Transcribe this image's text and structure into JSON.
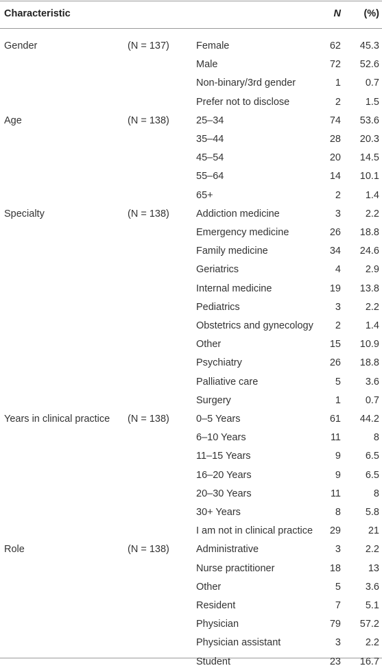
{
  "header": {
    "characteristic": "Characteristic",
    "n": "N",
    "pct": "(%)"
  },
  "groups": [
    {
      "name": "Gender",
      "n_label": "(N = 137)",
      "items": [
        {
          "label": "Female",
          "n": 62,
          "pct": 45.3
        },
        {
          "label": "Male",
          "n": 72,
          "pct": 52.6
        },
        {
          "label": "Non-binary/3rd gender",
          "n": 1,
          "pct": 0.7
        },
        {
          "label": "Prefer not to disclose",
          "n": 2,
          "pct": 1.5
        }
      ]
    },
    {
      "name": "Age",
      "n_label": "(N = 138)",
      "items": [
        {
          "label": "25–34",
          "n": 74,
          "pct": 53.6
        },
        {
          "label": "35–44",
          "n": 28,
          "pct": 20.3
        },
        {
          "label": "45–54",
          "n": 20,
          "pct": 14.5
        },
        {
          "label": "55–64",
          "n": 14,
          "pct": 10.1
        },
        {
          "label": "65+",
          "n": 2,
          "pct": 1.4
        }
      ]
    },
    {
      "name": "Specialty",
      "n_label": "(N = 138)",
      "items": [
        {
          "label": "Addiction medicine",
          "n": 3,
          "pct": 2.2
        },
        {
          "label": "Emergency medicine",
          "n": 26,
          "pct": 18.8
        },
        {
          "label": "Family medicine",
          "n": 34,
          "pct": 24.6
        },
        {
          "label": "Geriatrics",
          "n": 4,
          "pct": 2.9
        },
        {
          "label": "Internal medicine",
          "n": 19,
          "pct": 13.8
        },
        {
          "label": "Pediatrics",
          "n": 3,
          "pct": 2.2
        },
        {
          "label": "Obstetrics and gynecology",
          "n": 2,
          "pct": 1.4
        },
        {
          "label": "Other",
          "n": 15,
          "pct": 10.9
        },
        {
          "label": "Psychiatry",
          "n": 26,
          "pct": 18.8
        },
        {
          "label": "Palliative care",
          "n": 5,
          "pct": 3.6
        },
        {
          "label": "Surgery",
          "n": 1,
          "pct": 0.7
        }
      ]
    },
    {
      "name": "Years in clinical practice",
      "n_label": "(N = 138)",
      "items": [
        {
          "label": "0–5 Years",
          "n": 61,
          "pct": 44.2
        },
        {
          "label": "6–10 Years",
          "n": 11,
          "pct": 8
        },
        {
          "label": "11–15 Years",
          "n": 9,
          "pct": 6.5
        },
        {
          "label": "16–20 Years",
          "n": 9,
          "pct": 6.5
        },
        {
          "label": "20–30 Years",
          "n": 11,
          "pct": 8
        },
        {
          "label": "30+ Years",
          "n": 8,
          "pct": 5.8
        },
        {
          "label": "I am not in clinical practice",
          "n": 29,
          "pct": 21
        }
      ]
    },
    {
      "name": "Role",
      "n_label": "(N = 138)",
      "items": [
        {
          "label": "Administrative",
          "n": 3,
          "pct": 2.2
        },
        {
          "label": "Nurse practitioner",
          "n": 18,
          "pct": 13
        },
        {
          "label": "Other",
          "n": 5,
          "pct": 3.6
        },
        {
          "label": "Resident",
          "n": 7,
          "pct": 5.1
        },
        {
          "label": "Physician",
          "n": 79,
          "pct": 57.2
        },
        {
          "label": "Physician assistant",
          "n": 3,
          "pct": 2.2
        },
        {
          "label": "Student",
          "n": 23,
          "pct": 16.7
        }
      ]
    }
  ]
}
